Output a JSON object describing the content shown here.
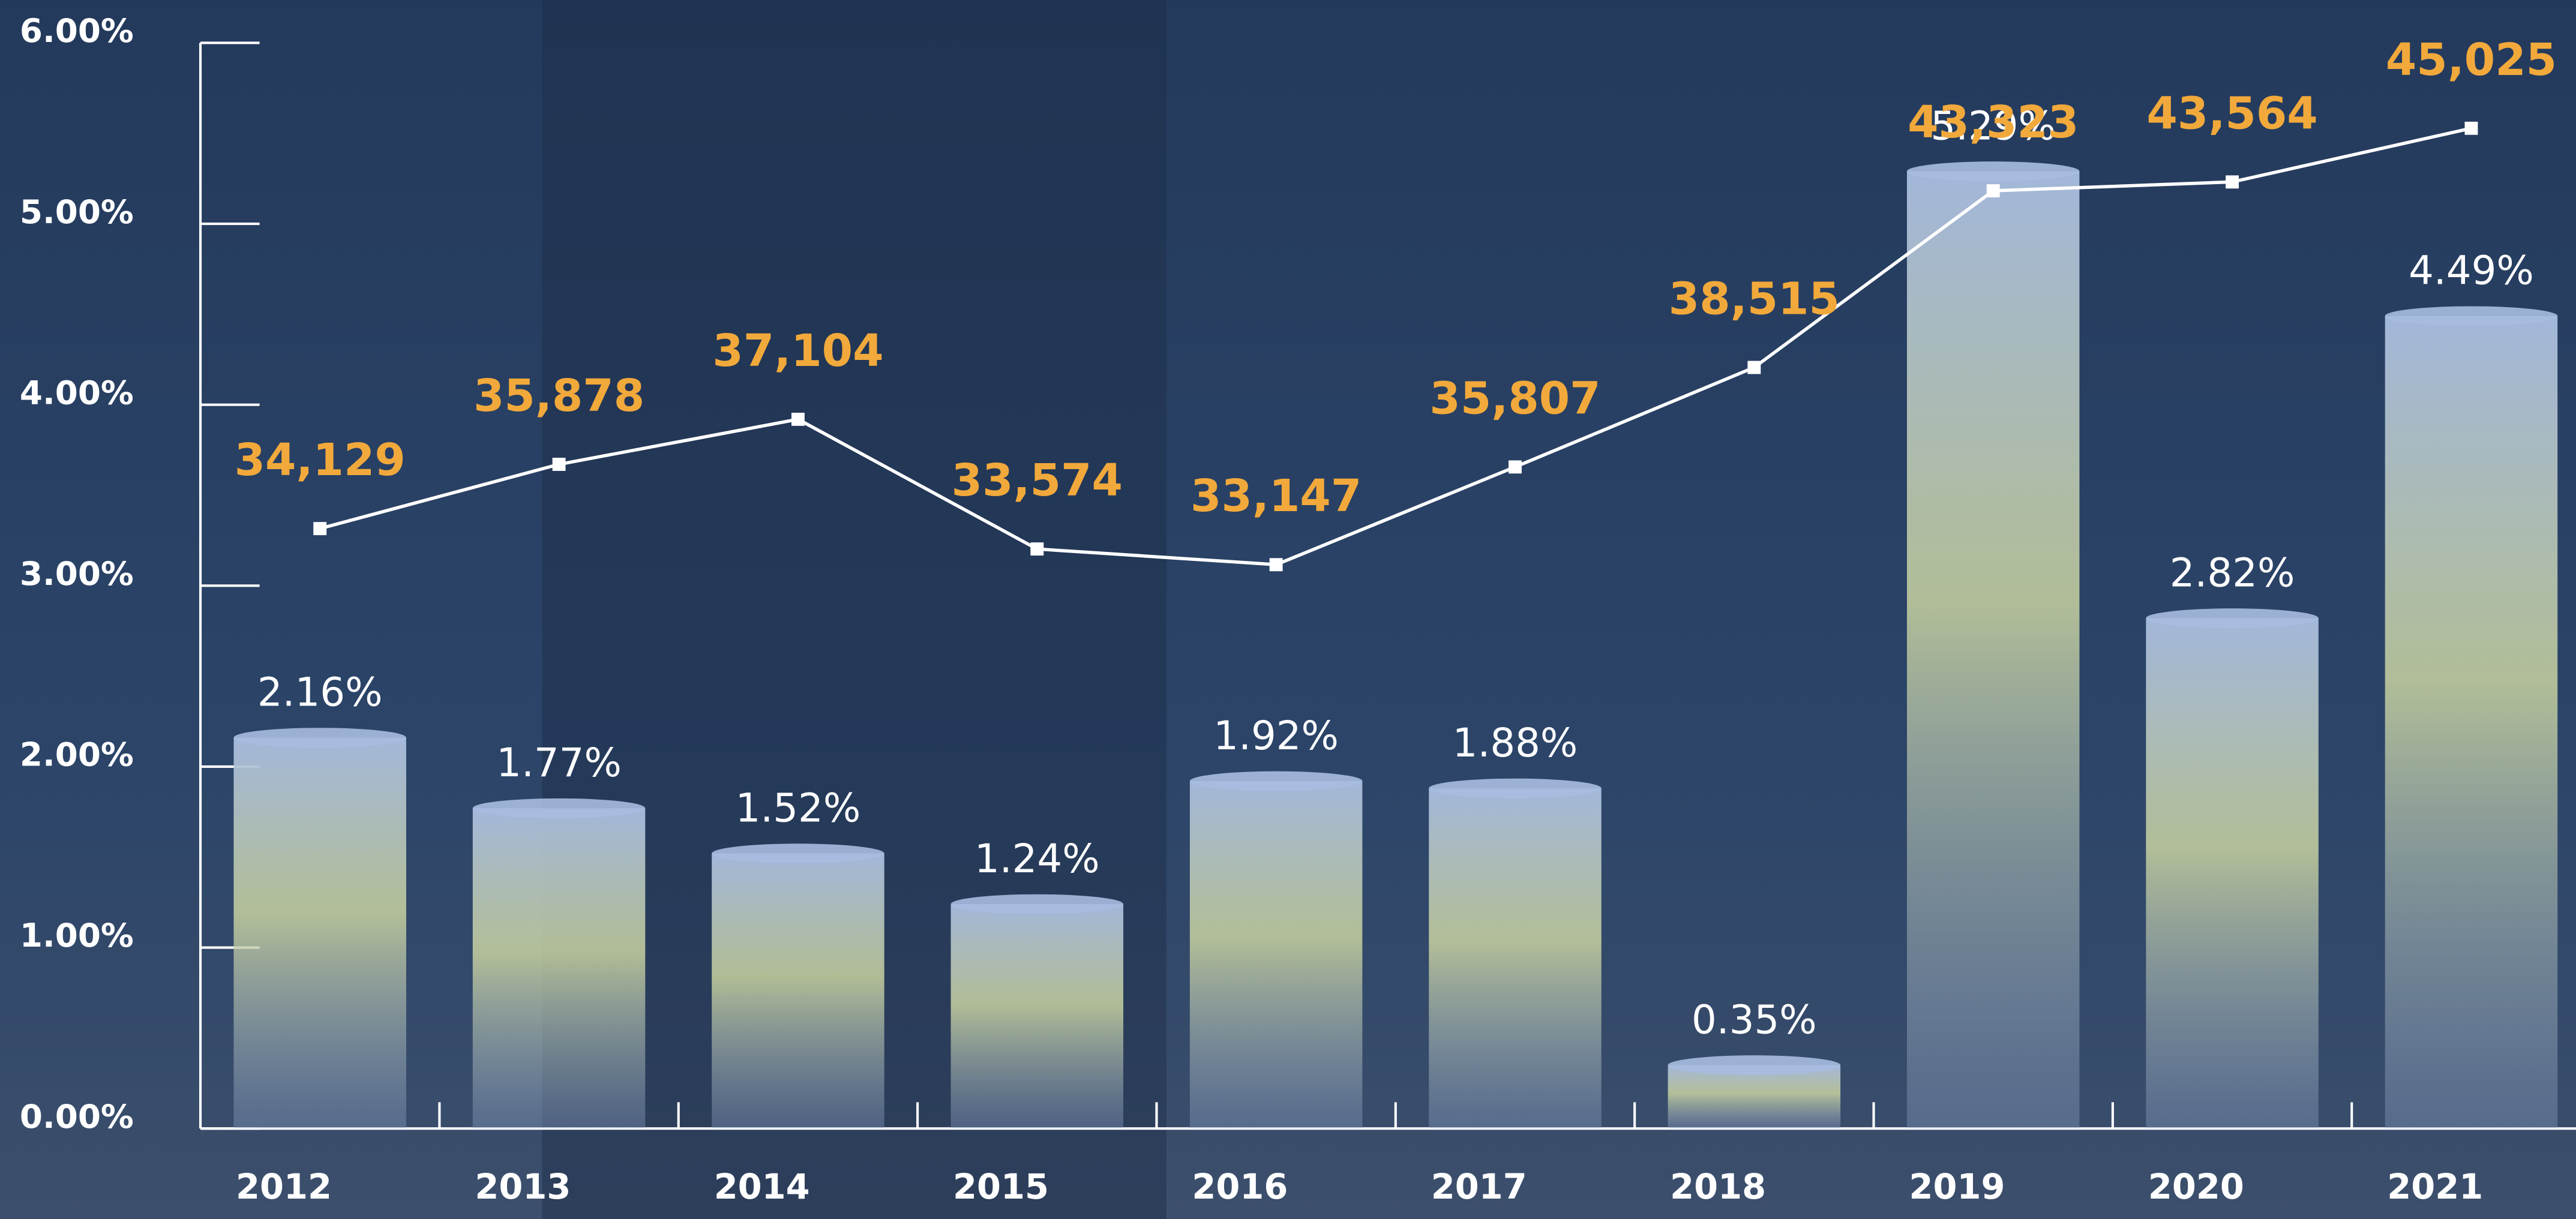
{
  "chart_data": {
    "type": "bar",
    "categories": [
      "2012",
      "2013",
      "2014",
      "2015",
      "2016",
      "2017",
      "2018",
      "2019",
      "2020",
      "2021"
    ],
    "series": [
      {
        "type": "bar",
        "color": "#a9bde0",
        "values": [
          2.16,
          1.77,
          1.52,
          1.24,
          1.92,
          1.88,
          0.35,
          5.29,
          2.82,
          4.49
        ],
        "value_labels": [
          "2.16%",
          "1.77%",
          "1.52%",
          "1.24%",
          "1.92%",
          "1.88%",
          "0.35%",
          "5.29%",
          "2.82%",
          "4.49%"
        ]
      },
      {
        "type": "line",
        "axis": "y2",
        "color": "#ffffff",
        "values": [
          34129,
          35878,
          37104,
          33574,
          33147,
          35807,
          38515,
          43323,
          43564,
          45025
        ],
        "value_labels": [
          "34,129",
          "35,878",
          "37,104",
          "33,574",
          "33,147",
          "35,807",
          "38,515",
          "43,323",
          "43,564",
          "45,025"
        ]
      }
    ],
    "ylim": [
      0,
      6
    ],
    "yticks": [
      {
        "value": 0,
        "label": "0.00%"
      },
      {
        "value": 1,
        "label": "1.00%"
      },
      {
        "value": 2,
        "label": "2.00%"
      },
      {
        "value": 3,
        "label": "3.00%"
      },
      {
        "value": 4,
        "label": "4.00%"
      },
      {
        "value": 5,
        "label": "5.00%"
      },
      {
        "value": 6,
        "label": "6.00%"
      }
    ],
    "y2lim": [
      17800,
      47350
    ]
  }
}
